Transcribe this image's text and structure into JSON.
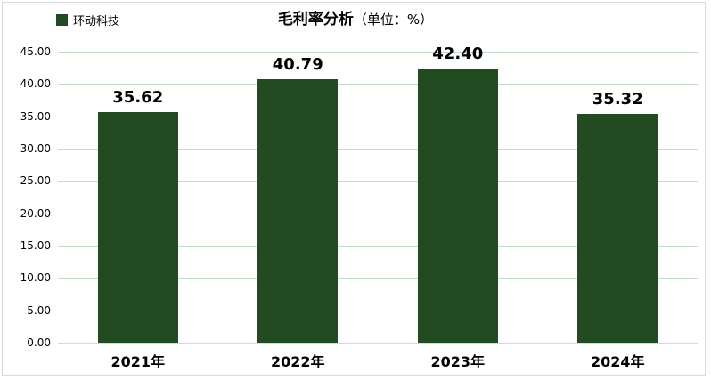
{
  "window": {
    "background": "#FFFFFF",
    "border_color": "#D9D9D9"
  },
  "title": {
    "main": "毛利率分析",
    "unit": "（单位：%）"
  },
  "legend": {
    "label": "环动科技",
    "swatch_color": "#234B22"
  },
  "chart_data": {
    "type": "bar",
    "title": "毛利率分析（单位：%）",
    "categories": [
      "2021年",
      "2022年",
      "2023年",
      "2024年"
    ],
    "series": [
      {
        "name": "环动科技",
        "color": "#234B22",
        "values": [
          35.62,
          40.79,
          42.4,
          35.32
        ]
      }
    ],
    "value_labels": [
      "35.62",
      "40.79",
      "42.40",
      "35.32"
    ],
    "xlabel": "",
    "ylabel": "",
    "ylim": [
      0,
      45
    ],
    "ytick_step": 5,
    "ytick_labels": [
      "0.00",
      "5.00",
      "10.00",
      "15.00",
      "20.00",
      "25.00",
      "30.00",
      "35.00",
      "40.00",
      "45.00"
    ],
    "grid": true,
    "gridline_color": "#C2DDC3",
    "axis_line_color": "#D9D9D9",
    "legend_position": "top-left"
  }
}
